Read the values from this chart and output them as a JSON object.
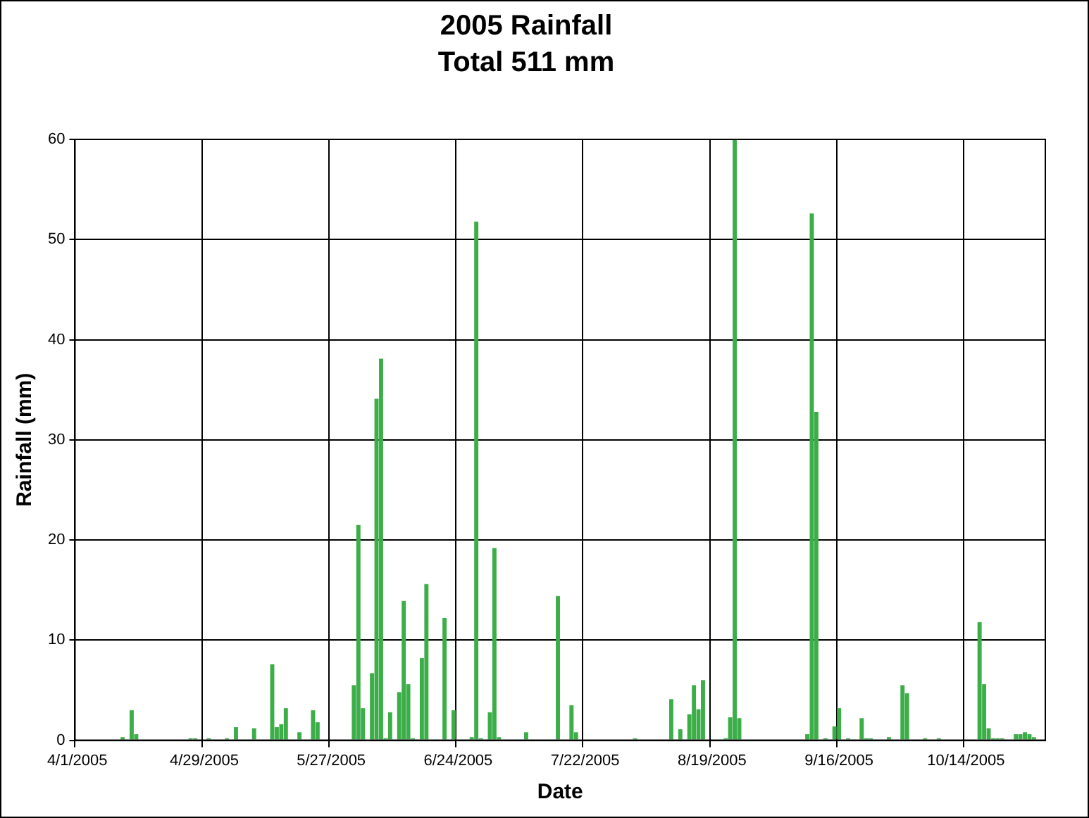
{
  "chart_data": {
    "type": "bar",
    "title": "2005 Rainfall",
    "subtitle": "Total 511 mm",
    "xlabel": "Date",
    "ylabel": "Rainfall (mm)",
    "categories": [
      "4/1/2005",
      null,
      null,
      null,
      null,
      null,
      null,
      null,
      null,
      null,
      null,
      null,
      null,
      null,
      null,
      null,
      null,
      null,
      null,
      null,
      null,
      null,
      null,
      null,
      null,
      null,
      null,
      null,
      "4/29/2005",
      null,
      null,
      null,
      null,
      null,
      null,
      null,
      null,
      null,
      null,
      null,
      null,
      null,
      null,
      null,
      null,
      null,
      null,
      null,
      null,
      null,
      null,
      null,
      null,
      null,
      null,
      null,
      "5/27/2005",
      null,
      null,
      null,
      null,
      null,
      null,
      null,
      null,
      null,
      null,
      null,
      null,
      null,
      null,
      null,
      null,
      null,
      null,
      null,
      null,
      null,
      null,
      null,
      null,
      null,
      null,
      null,
      "6/24/2005",
      null,
      null,
      null,
      null,
      null,
      null,
      null,
      null,
      null,
      null,
      null,
      null,
      null,
      null,
      null,
      null,
      null,
      null,
      null,
      null,
      null,
      null,
      null,
      null,
      null,
      null,
      null,
      "7/22/2005",
      null,
      null,
      null,
      null,
      null,
      null,
      null,
      null,
      null,
      null,
      null,
      null,
      null,
      null,
      null,
      null,
      null,
      null,
      null,
      null,
      null,
      null,
      null,
      null,
      null,
      null,
      null,
      "8/19/2005",
      null,
      null,
      null,
      null,
      null,
      null,
      null,
      null,
      null,
      null,
      null,
      null,
      null,
      null,
      null,
      null,
      null,
      null,
      null,
      null,
      null,
      null,
      null,
      null,
      null,
      null,
      null,
      "9/16/2005",
      null,
      null,
      null,
      null,
      null,
      null,
      null,
      null,
      null,
      null,
      null,
      null,
      null,
      null,
      null,
      null,
      null,
      null,
      null,
      null,
      null,
      null,
      null,
      null,
      null,
      null,
      null,
      "10/14/2005",
      null,
      null,
      null,
      null,
      null,
      null,
      null,
      null,
      null,
      null,
      null,
      null,
      null,
      null,
      null,
      null,
      null
    ],
    "values": [
      null,
      null,
      null,
      null,
      null,
      null,
      null,
      null,
      null,
      null,
      0.3,
      null,
      3,
      0.6,
      null,
      null,
      null,
      null,
      null,
      null,
      null,
      null,
      null,
      null,
      null,
      0.2,
      0.2,
      null,
      null,
      0.2,
      null,
      null,
      null,
      0.2,
      null,
      1.3,
      null,
      null,
      null,
      1.2,
      null,
      null,
      null,
      7.6,
      1.3,
      1.6,
      3.2,
      null,
      null,
      0.8,
      null,
      null,
      3,
      1.8,
      null,
      null,
      null,
      null,
      null,
      null,
      null,
      5.5,
      21.5,
      3.2,
      null,
      6.7,
      34.1,
      38.1,
      0.2,
      2.8,
      null,
      4.8,
      13.9,
      5.6,
      0.2,
      null,
      8.2,
      15.6,
      null,
      null,
      null,
      12.2,
      null,
      3,
      null,
      null,
      null,
      0.3,
      51.8,
      0.2,
      null,
      2.8,
      19.2,
      0.3,
      null,
      null,
      null,
      null,
      null,
      0.8,
      null,
      null,
      null,
      null,
      null,
      null,
      14.4,
      null,
      null,
      3.5,
      0.8,
      null,
      null,
      null,
      null,
      null,
      null,
      null,
      null,
      null,
      null,
      null,
      null,
      0.2,
      null,
      null,
      null,
      null,
      null,
      null,
      null,
      4.1,
      null,
      1.1,
      null,
      2.6,
      5.5,
      3.1,
      6,
      null,
      null,
      null,
      null,
      0.2,
      2.3,
      60,
      2.2,
      null,
      null,
      null,
      null,
      null,
      null,
      null,
      null,
      null,
      null,
      null,
      null,
      null,
      null,
      0.6,
      52.6,
      32.8,
      null,
      0.2,
      null,
      1.4,
      3.2,
      null,
      0.2,
      null,
      null,
      2.2,
      0.2,
      0.2,
      null,
      null,
      null,
      0.3,
      null,
      null,
      5.5,
      4.7,
      null,
      null,
      null,
      0.2,
      null,
      null,
      0.2,
      null,
      null,
      null,
      null,
      null,
      null,
      null,
      null,
      11.8,
      5.6,
      1.2,
      0.2,
      0.2,
      0.2,
      null,
      null,
      0.6,
      0.6,
      0.8,
      0.6,
      0.3,
      null,
      null
    ],
    "color": "#3cae48",
    "ylim": [
      0,
      60
    ],
    "yticks": [
      0,
      10,
      20,
      30,
      40,
      50,
      60
    ],
    "grid": true,
    "legend": false
  }
}
